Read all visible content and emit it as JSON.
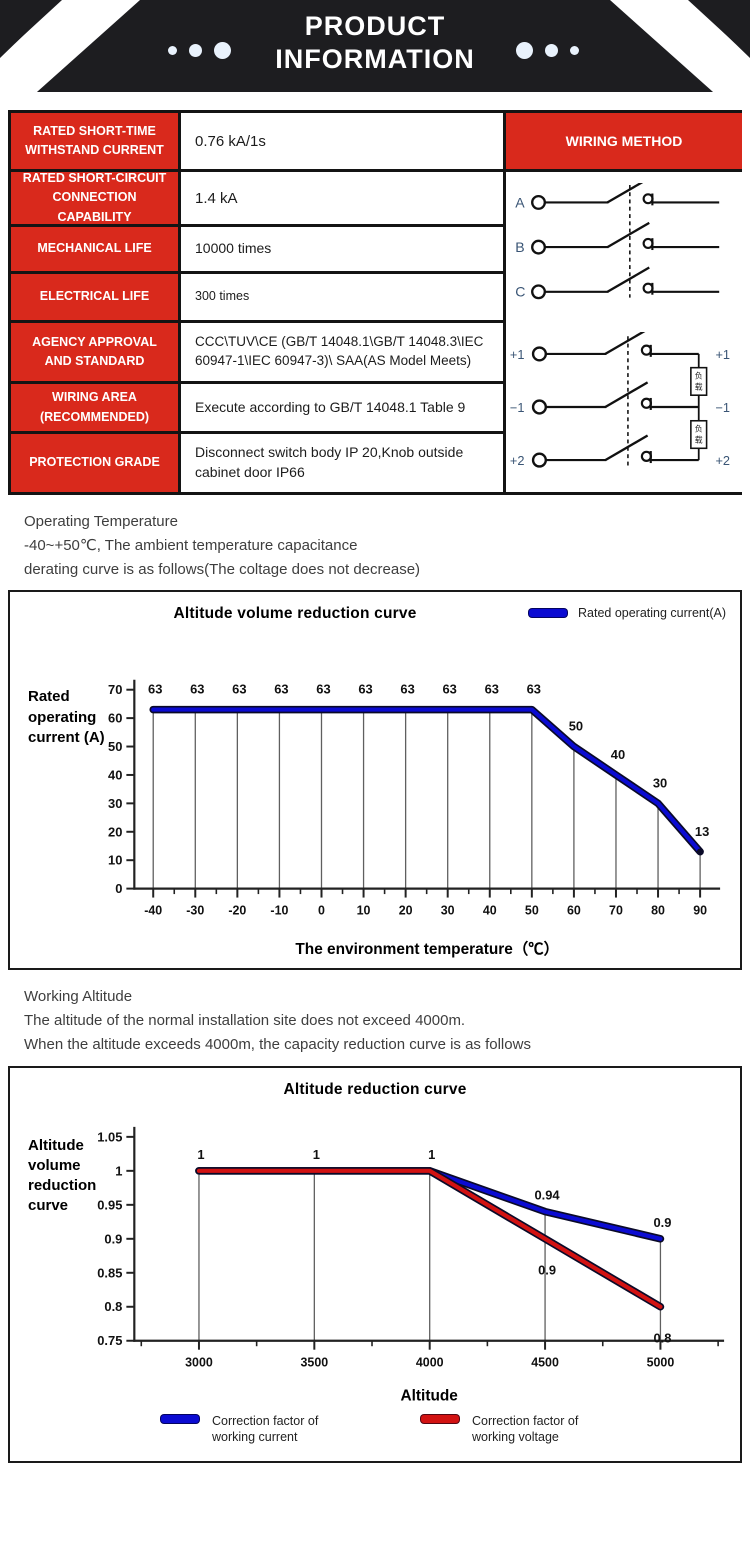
{
  "header": {
    "title_line1": "PRODUCT",
    "title_line2": "INFORMATION",
    "bg_color": "#1d1d20",
    "dot_color": "#e9f2fc"
  },
  "spec_table": {
    "accent_color": "#d9291c",
    "rows": [
      {
        "label": "RATED SHORT-TIME WITHSTAND CURRENT",
        "value": "0.76 kA/1s"
      },
      {
        "label": "RATED SHORT-CIRCUIT CONNECTION CAPABILITY",
        "value": "1.4 kA"
      },
      {
        "label": "MECHANICAL LIFE",
        "value": "10000 times"
      },
      {
        "label": "ELECTRICAL LIFE",
        "value": "300 times"
      },
      {
        "label": "AGENCY APPROVAL AND STANDARD",
        "value": "CCC\\TUV\\CE (GB/T 14048.1\\GB/T 14048.3\\IEC 60947-1\\IEC 60947-3)\\ SAA(AS Model Meets)"
      },
      {
        "label": "WIRING AREA (RECOMMENDED)",
        "value": "Execute according to GB/T 14048.1 Table 9"
      },
      {
        "label": "PROTECTION GRADE",
        "value": "Disconnect switch body IP 20,Knob outside cabinet door IP66"
      }
    ],
    "wiring": {
      "header": "WIRING METHOD",
      "d1": [
        "A",
        "B",
        "C"
      ],
      "d2_left": [
        "+1",
        "−1",
        "+2"
      ],
      "d2_right": [
        "+1",
        "−1",
        "+2"
      ],
      "load_top": "负",
      "load_bottom": "载"
    }
  },
  "notes1": {
    "line1": "Operating Temperature",
    "line2": " -40~+50℃, The ambient temperature capacitance",
    "line3": "derating curve is as follows(The coltage does not decrease)"
  },
  "notes2": {
    "line1": "Working Altitude",
    "line2": "The altitude of the normal installation site does not exceed 4000m.",
    "line3": "When the altitude exceeds 4000m, the capacity reduction curve is as follows"
  },
  "chart_data": [
    {
      "type": "line",
      "title": "Altitude volume reduction curve",
      "ylabel": "Rated operating current (A)",
      "xlabel": "The environment temperature（℃）",
      "x": [
        -40,
        -30,
        -20,
        -10,
        0,
        10,
        20,
        30,
        40,
        50,
        60,
        70,
        80,
        90
      ],
      "ylim": [
        0,
        70
      ],
      "ytick": 10,
      "grid": "vertical-to-curve",
      "legend_position": "top-right",
      "series": [
        {
          "name": "Rated operating current(A)",
          "color": "#0b0bd2",
          "values": [
            63,
            63,
            63,
            63,
            63,
            63,
            63,
            63,
            63,
            63,
            50,
            40,
            30,
            13
          ],
          "point_labels": [
            "63",
            "63",
            "63",
            "63",
            "63",
            "63",
            "63",
            "63",
            "63",
            "63",
            "50",
            "40",
            "30",
            "13"
          ]
        }
      ]
    },
    {
      "type": "line",
      "title": "Altitude reduction curve",
      "ylabel": "Altitude volume reduction curve",
      "xlabel": "Altitude",
      "x": [
        3000,
        3500,
        4000,
        4500,
        5000
      ],
      "ylim": [
        0.75,
        1.05
      ],
      "ytick": 0.05,
      "grid": "vertical-to-curve",
      "legend_position": "bottom",
      "series": [
        {
          "name": "Correction factor of working current",
          "color": "#0b0bd2",
          "values": [
            1,
            1,
            1,
            0.94,
            0.9
          ],
          "point_labels": [
            "1",
            "1",
            "1",
            "0.94",
            "0.9"
          ]
        },
        {
          "name": "Correction factor of working voltage",
          "color": "#d21212",
          "values": [
            1,
            1,
            1,
            0.9,
            0.8
          ],
          "point_labels": [
            null,
            null,
            null,
            "0.9",
            "0.8"
          ]
        }
      ]
    }
  ]
}
